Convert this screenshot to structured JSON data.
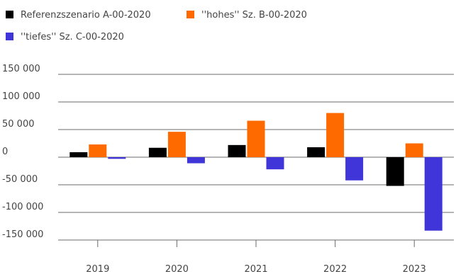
{
  "chart_data": {
    "type": "bar",
    "title": "",
    "xlabel": "",
    "ylabel": "",
    "categories": [
      "2019",
      "2020",
      "2021",
      "2022",
      "2023"
    ],
    "series": [
      {
        "name": "Referenzszenario A-00-2020",
        "color": "#000000",
        "values": [
          9000,
          17000,
          22000,
          18000,
          -52000
        ]
      },
      {
        "name": "''hohes'' Sz. B-00-2020",
        "color": "#ff6a00",
        "values": [
          23000,
          46000,
          66000,
          80000,
          25000
        ]
      },
      {
        "name": "''tiefes'' Sz. C-00-2020",
        "color": "#3f35d8",
        "values": [
          -3000,
          -11000,
          -22000,
          -42000,
          -133000
        ]
      }
    ],
    "ylim": [
      -150000,
      150000
    ],
    "yticks": [
      {
        "value": 150000,
        "label": "150 000"
      },
      {
        "value": 100000,
        "label": "100 000"
      },
      {
        "value": 50000,
        "label": "50 000"
      },
      {
        "value": 0,
        "label": "0"
      },
      {
        "value": -50000,
        "label": "-50 000"
      },
      {
        "value": -100000,
        "label": "-100 000"
      },
      {
        "value": -150000,
        "label": "-150 000"
      }
    ],
    "grid": true,
    "legend_position": "top-left"
  }
}
